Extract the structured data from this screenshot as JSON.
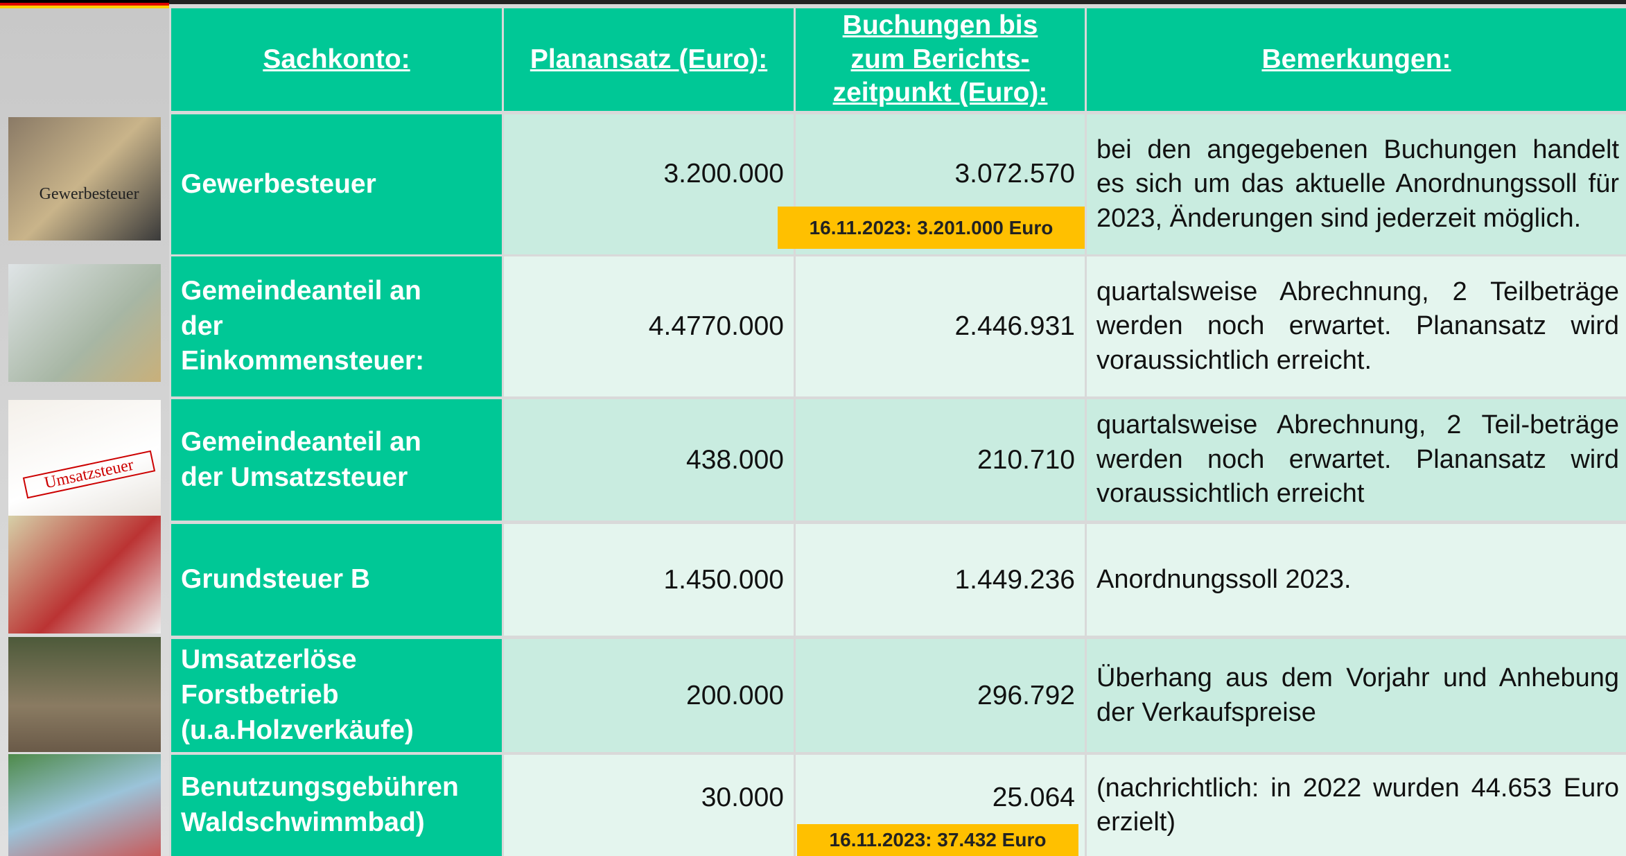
{
  "images": [
    {
      "label": "Gewerbesteuer"
    },
    {},
    {
      "label": "Umsatzsteuer"
    },
    {},
    {},
    {}
  ],
  "table": {
    "header": [
      "Sachkonto:",
      "Planansatz (Euro):",
      "Buchungen bis\nzum  Berichts-\nzeitpunkt (Euro):",
      "Bemerkungen:"
    ],
    "rows": [
      {
        "cells": [
          "Gewerbesteuer",
          "3.200.000",
          "3.072.570",
          "bei den angegebenen Buchungen handelt es sich um das aktuelle Anordnungssoll für 2023, Änderungen sind jederzeit möglich."
        ],
        "note": "16.11.2023: 3.201.000 Euro"
      },
      {
        "cells": [
          "Gemeindeanteil an\nder\nEinkommensteuer:",
          "4.4770.000",
          "2.446.931",
          "quartalsweise Abrechnung, 2 Teilbeträge werden noch erwartet. Planansatz wird voraussichtlich erreicht."
        ]
      },
      {
        "cells": [
          "Gemeindeanteil an\nder Umsatzsteuer",
          "438.000",
          "210.710",
          "quartalsweise Abrechnung, 2 Teil-beträge werden noch erwartet. Planansatz wird voraussichtlich erreicht"
        ]
      },
      {
        "cells": [
          "Grundsteuer B",
          "1.450.000",
          "1.449.236",
          "Anordnungssoll 2023."
        ]
      },
      {
        "cells": [
          "Umsatzerlöse\nForstbetrieb\n(u.a.Holzverkäufe)",
          "200.000",
          "296.792",
          "Überhang aus dem Vorjahr und Anhebung der Verkaufspreise"
        ]
      },
      {
        "cells": [
          "Benutzungsgebühren\nWaldschwimmbad)",
          "30.000",
          "25.064",
          "(nachrichtlich: in 2022 wurden 44.653 Euro erzielt)"
        ],
        "note": "16.11.2023: 37.432 Euro"
      }
    ]
  }
}
